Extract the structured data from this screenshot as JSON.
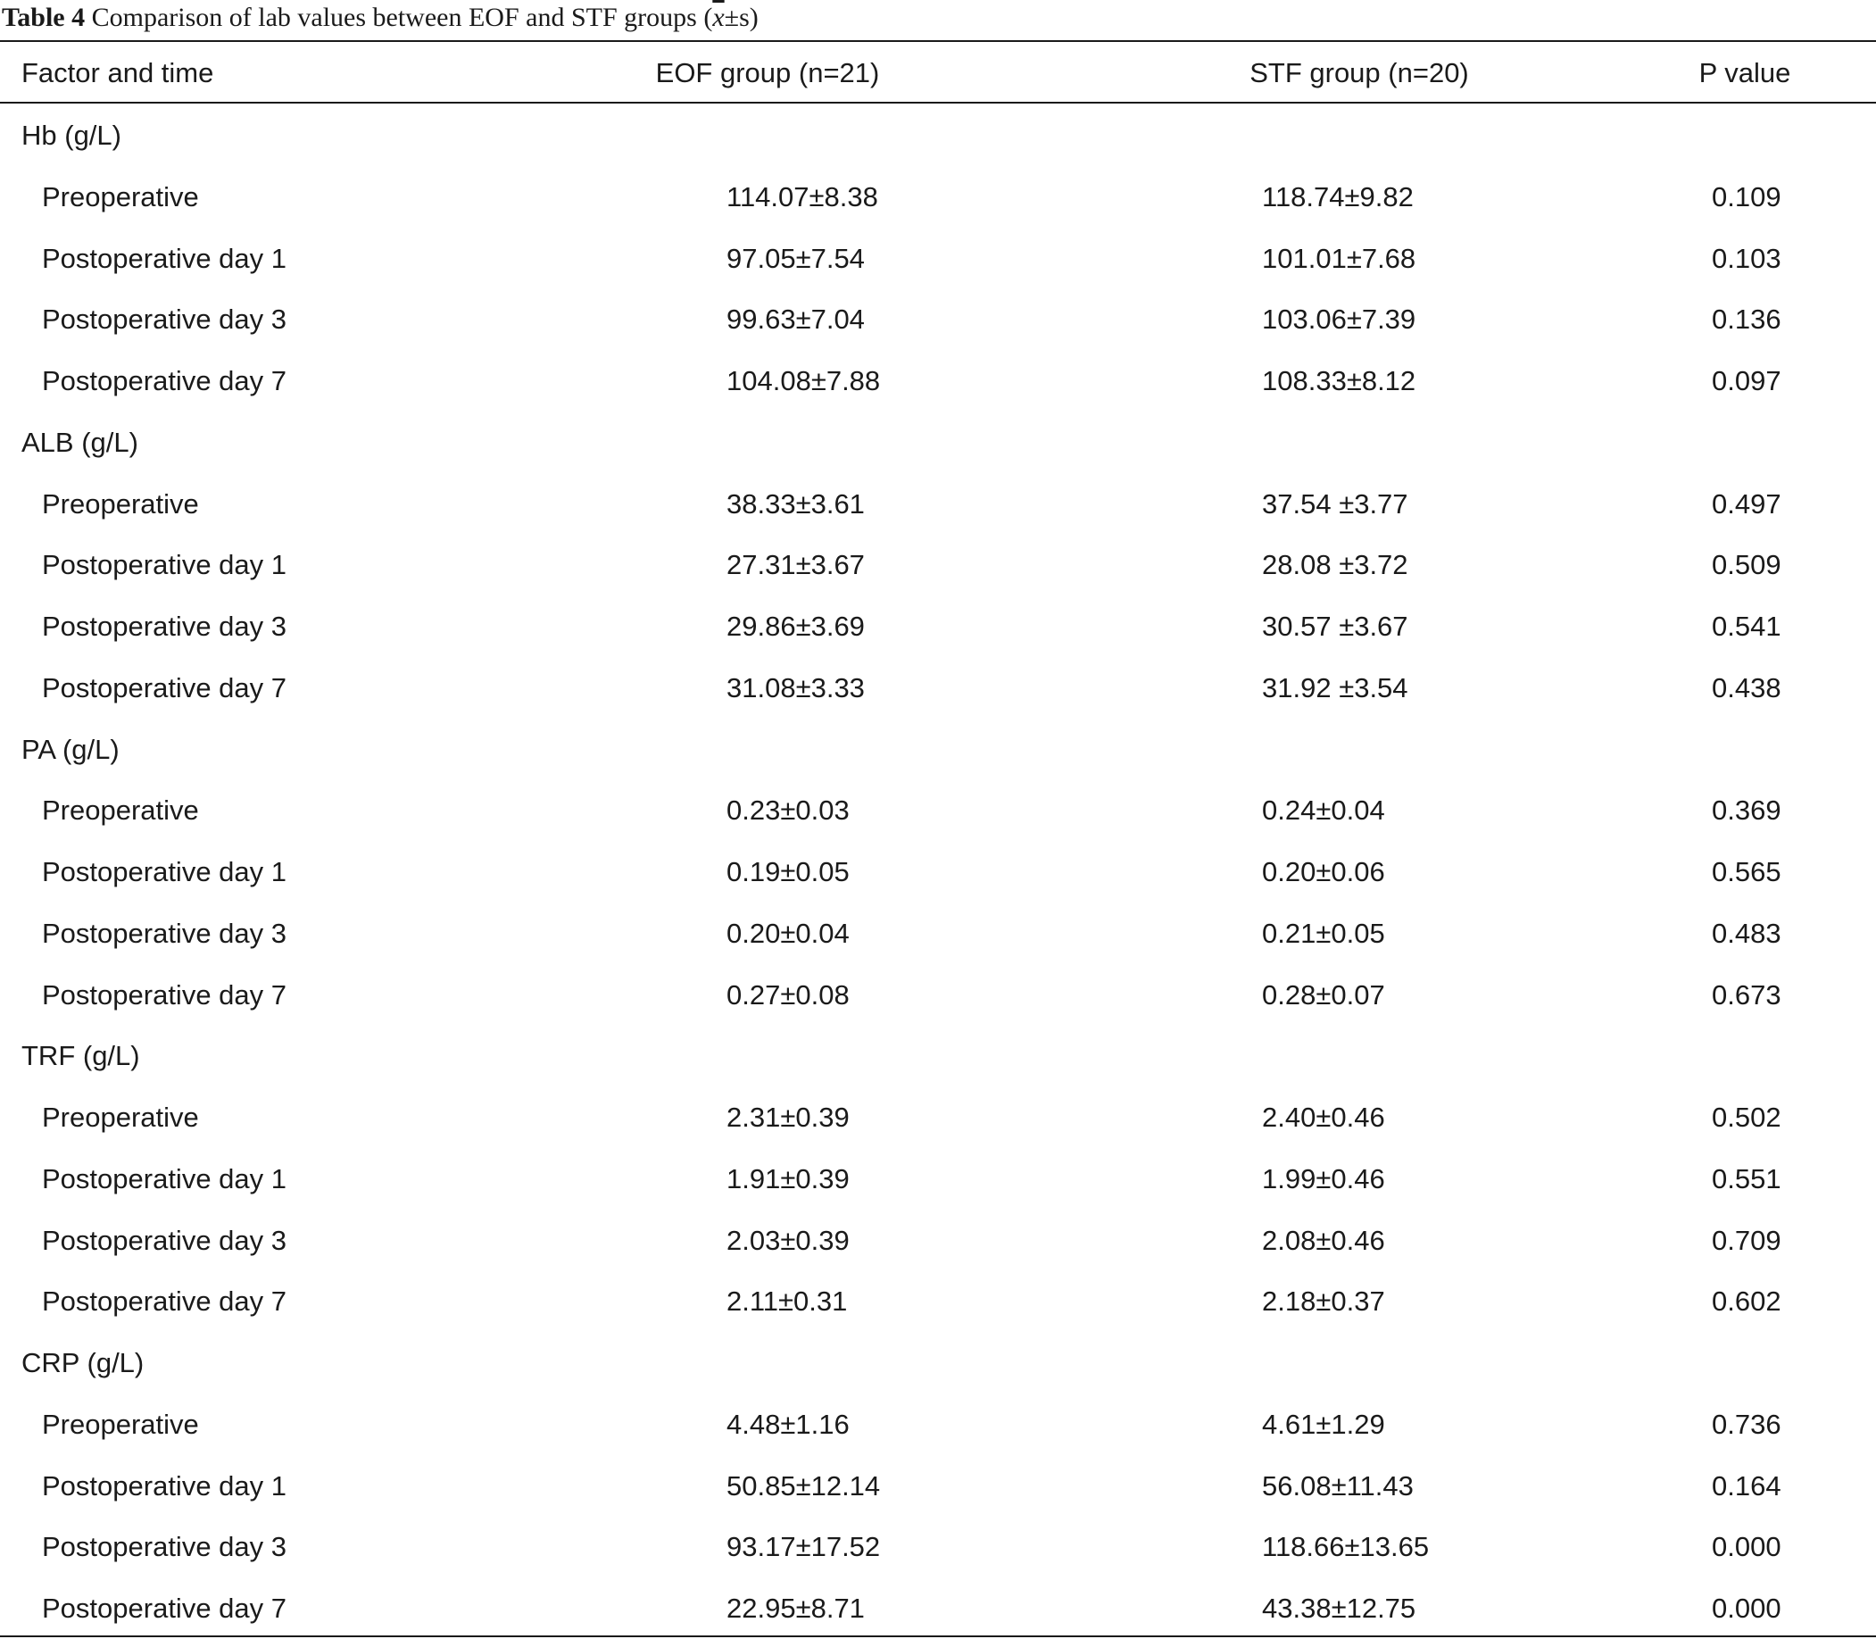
{
  "caption": {
    "label": "Table 4",
    "text": "Comparison of lab values between EOF and STF groups (",
    "xbar": "x",
    "suffix": "±s)"
  },
  "header": [
    "Factor and time",
    "EOF group (n=21)",
    "STF group (n=20)",
    "P value"
  ],
  "groups": [
    {
      "name": "Hb (g/L)",
      "rows": [
        {
          "time": "Preoperative",
          "eof": "114.07±8.38",
          "stf": "118.74±9.82",
          "p": "0.109"
        },
        {
          "time": "Postoperative day 1",
          "eof": "97.05±7.54",
          "stf": "101.01±7.68",
          "p": "0.103"
        },
        {
          "time": "Postoperative day 3",
          "eof": "99.63±7.04",
          "stf": "103.06±7.39",
          "p": "0.136"
        },
        {
          "time": "Postoperative day 7",
          "eof": "104.08±7.88",
          "stf": "108.33±8.12",
          "p": "0.097"
        }
      ]
    },
    {
      "name": "ALB (g/L)",
      "rows": [
        {
          "time": "Preoperative",
          "eof": "38.33±3.61",
          "stf": "37.54 ±3.77",
          "p": "0.497"
        },
        {
          "time": "Postoperative day 1",
          "eof": "27.31±3.67",
          "stf": "28.08 ±3.72",
          "p": "0.509"
        },
        {
          "time": "Postoperative day 3",
          "eof": "29.86±3.69",
          "stf": "30.57 ±3.67",
          "p": "0.541"
        },
        {
          "time": "Postoperative day 7",
          "eof": "31.08±3.33",
          "stf": "31.92 ±3.54",
          "p": "0.438"
        }
      ]
    },
    {
      "name": "PA (g/L)",
      "rows": [
        {
          "time": "Preoperative",
          "eof": "0.23±0.03",
          "stf": "0.24±0.04",
          "p": "0.369"
        },
        {
          "time": "Postoperative day 1",
          "eof": "0.19±0.05",
          "stf": "0.20±0.06",
          "p": "0.565"
        },
        {
          "time": "Postoperative day 3",
          "eof": "0.20±0.04",
          "stf": "0.21±0.05",
          "p": "0.483"
        },
        {
          "time": "Postoperative day 7",
          "eof": "0.27±0.08",
          "stf": "0.28±0.07",
          "p": "0.673"
        }
      ]
    },
    {
      "name": "TRF (g/L)",
      "rows": [
        {
          "time": "Preoperative",
          "eof": "2.31±0.39",
          "stf": "2.40±0.46",
          "p": "0.502"
        },
        {
          "time": "Postoperative day 1",
          "eof": "1.91±0.39",
          "stf": "1.99±0.46",
          "p": "0.551"
        },
        {
          "time": "Postoperative day 3",
          "eof": "2.03±0.39",
          "stf": "2.08±0.46",
          "p": "0.709"
        },
        {
          "time": "Postoperative day 7",
          "eof": "2.11±0.31",
          "stf": "2.18±0.37",
          "p": "0.602"
        }
      ]
    },
    {
      "name": "CRP (g/L)",
      "rows": [
        {
          "time": "Preoperative",
          "eof": "4.48±1.16",
          "stf": "4.61±1.29",
          "p": "0.736"
        },
        {
          "time": "Postoperative day 1",
          "eof": "50.85±12.14",
          "stf": "56.08±11.43",
          "p": "0.164"
        },
        {
          "time": "Postoperative day 3",
          "eof": "93.17±17.52",
          "stf": "118.66±13.65",
          "p": "0.000"
        },
        {
          "time": "Postoperative day 7",
          "eof": "22.95±8.71",
          "stf": "43.38±12.75",
          "p": "0.000"
        }
      ]
    }
  ]
}
